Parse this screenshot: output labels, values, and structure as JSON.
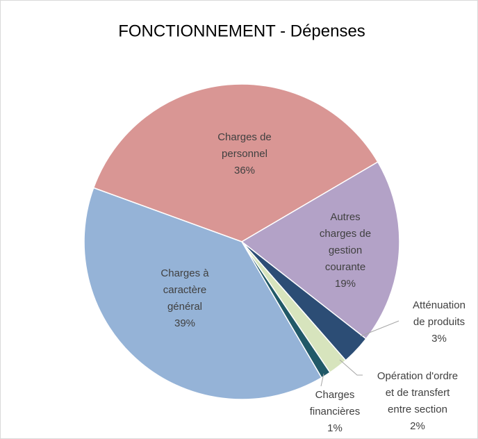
{
  "chart_data": {
    "type": "pie",
    "title": "FONCTIONNEMENT - Dépenses",
    "categories": [
      "Charges de personnel",
      "Autres charges de gestion courante",
      "Atténuation de produits",
      "Opération d'ordre et de transfert entre section",
      "Charges financières",
      "Charges à caractère général"
    ],
    "values": [
      36,
      19,
      3,
      2,
      1,
      39
    ],
    "value_labels": [
      "36%",
      "19%",
      "3%",
      "2%",
      "1%",
      "39%"
    ],
    "colors": [
      "#d99694",
      "#b3a2c7",
      "#2c4d75",
      "#d7e4bd",
      "#215968",
      "#95b3d7"
    ]
  }
}
